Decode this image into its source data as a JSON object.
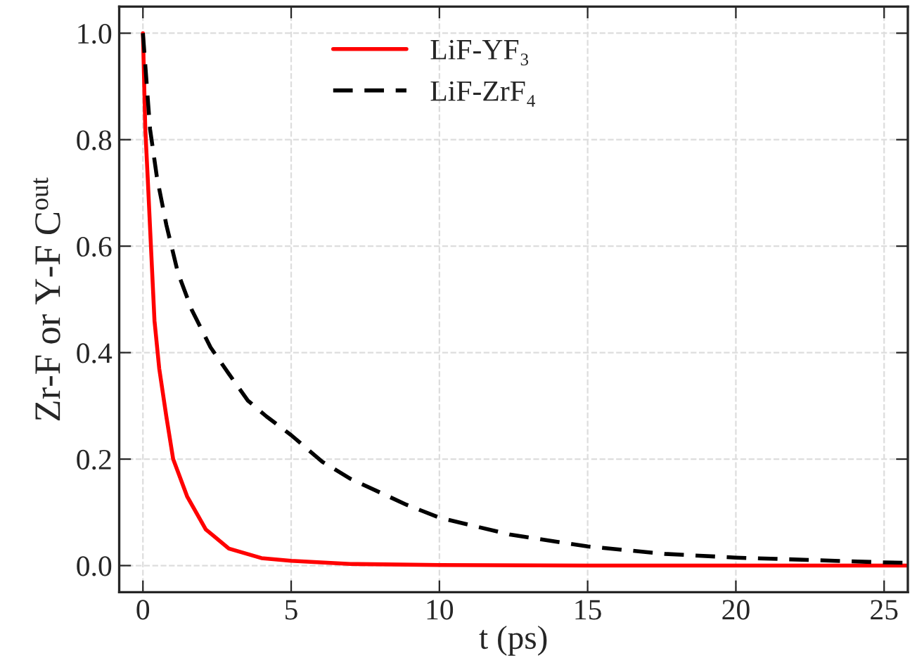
{
  "chart_data": {
    "type": "line",
    "xlabel": "t (ps)",
    "ylabel": "Zr-F or Y-F C$^{out}$",
    "xlim": [
      -0.8,
      25.8
    ],
    "ylim": [
      -0.05,
      1.05
    ],
    "xticks": [
      0,
      5,
      10,
      15,
      20,
      25
    ],
    "yticks": [
      {
        "value": 0,
        "label": "0.0"
      },
      {
        "value": 0.2,
        "label": "0.2"
      },
      {
        "value": 0.4,
        "label": "0.4"
      },
      {
        "value": 0.6,
        "label": "0.6"
      },
      {
        "value": 0.8,
        "label": "0.8"
      },
      {
        "value": 1,
        "label": "1.0"
      }
    ],
    "grid": true,
    "legend": "top",
    "marker": "none",
    "series": [
      {
        "name": "LiF-YF₃",
        "color": "#ff0000",
        "line_style": "solid",
        "x": [
          0,
          0.08,
          0.16,
          0.27,
          0.39,
          0.55,
          0.79,
          1.02,
          1.49,
          2.12,
          2.9,
          4.0,
          5,
          7,
          10,
          15,
          20,
          25.8
        ],
        "values": [
          1.0,
          0.82,
          0.73,
          0.6,
          0.46,
          0.37,
          0.28,
          0.2,
          0.13,
          0.068,
          0.032,
          0.014,
          0.009,
          0.003,
          0.001,
          0.0,
          0.0,
          0.0
        ]
      },
      {
        "name": "LiF-ZrF₄",
        "color": "#000000",
        "line_style": "dashed",
        "x": [
          0,
          0.24,
          0.47,
          0.79,
          1.18,
          1.65,
          2.28,
          2.9,
          3.54,
          4.17,
          5,
          6.05,
          7,
          8.9,
          10,
          12.4,
          15,
          17.6,
          20,
          25,
          25.8
        ],
        "values": [
          1.0,
          0.82,
          0.73,
          0.64,
          0.55,
          0.48,
          0.41,
          0.36,
          0.31,
          0.28,
          0.245,
          0.195,
          0.163,
          0.114,
          0.09,
          0.058,
          0.036,
          0.022,
          0.015,
          0.006,
          0.005
        ]
      }
    ]
  }
}
